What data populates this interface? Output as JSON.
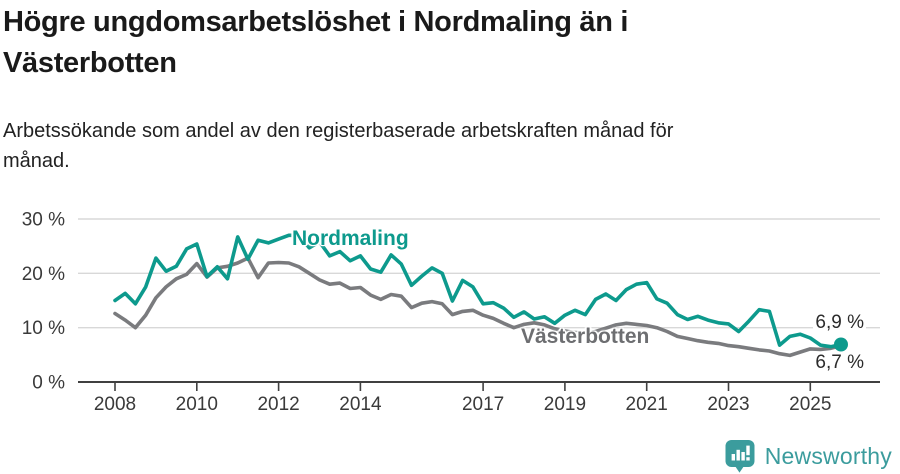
{
  "header": {
    "title_lines": [
      "Högre ungdomsarbetslöshet i Nordmaling än i",
      "Västerbotten"
    ],
    "subtitle_lines": [
      "Arbetssökande som andel av den registerbaserade arbetskraften månad för",
      "månad."
    ]
  },
  "chart_data": {
    "type": "line",
    "title": "Högre ungdomsarbetslöshet i Nordmaling än i Västerbotten",
    "subtitle": "Arbetssökande som andel av den registerbaserade arbetskraften månad för månad.",
    "unit": "%",
    "xlabel": "",
    "ylabel": "",
    "ylim": [
      0,
      30
    ],
    "grid": true,
    "legend_position": "inline-labels",
    "x_start_year": 2008,
    "x_step_years": 0.25,
    "x_end_year": 2025.75,
    "y_ticks": [
      {
        "value": 0,
        "label": "0 %"
      },
      {
        "value": 10,
        "label": "10 %"
      },
      {
        "value": 20,
        "label": "20 %"
      },
      {
        "value": 30,
        "label": "30 %"
      }
    ],
    "x_ticks": [
      {
        "year": 2008,
        "label": "2008"
      },
      {
        "year": 2010,
        "label": "2010"
      },
      {
        "year": 2012,
        "label": "2012"
      },
      {
        "year": 2014,
        "label": "2014"
      },
      {
        "year": 2017,
        "label": "2017"
      },
      {
        "year": 2019,
        "label": "2019"
      },
      {
        "year": 2021,
        "label": "2021"
      },
      {
        "year": 2023,
        "label": "2023"
      },
      {
        "year": 2025,
        "label": "2025"
      }
    ],
    "series": [
      {
        "name": "Nordmaling",
        "color": "#0D9A8D",
        "end_label": "6,9 %",
        "end_value": 6.9,
        "end_dot": true,
        "values": [
          15.0,
          16.3,
          14.4,
          17.5,
          22.8,
          20.4,
          21.3,
          24.5,
          25.4,
          19.4,
          21.2,
          19.0,
          26.7,
          22.6,
          26.1,
          25.6,
          26.3,
          27.0,
          27.0,
          24.7,
          25.8,
          23.2,
          24.0,
          22.3,
          23.2,
          20.8,
          20.2,
          23.4,
          21.7,
          17.8,
          19.5,
          21.0,
          20.0,
          14.9,
          18.7,
          17.5,
          14.4,
          14.6,
          13.6,
          11.9,
          12.9,
          11.6,
          12.0,
          10.8,
          12.3,
          13.2,
          12.4,
          15.2,
          16.2,
          15.0,
          17.0,
          18.0,
          18.3,
          15.3,
          14.5,
          12.4,
          11.5,
          12.1,
          11.4,
          10.9,
          10.7,
          9.3,
          11.2,
          13.3,
          13.0,
          6.8,
          8.4,
          8.8,
          8.1,
          6.8,
          6.5,
          6.9
        ]
      },
      {
        "name": "Västerbotten",
        "color": "#7A7B7E",
        "label_color": "#6d6e71",
        "end_label": "6,7 %",
        "end_value": 6.7,
        "end_dot": false,
        "values": [
          12.6,
          11.4,
          10.0,
          12.3,
          15.5,
          17.5,
          19.0,
          19.8,
          21.8,
          19.3,
          21.0,
          21.3,
          21.9,
          22.8,
          19.2,
          21.9,
          22.0,
          21.9,
          21.2,
          20.0,
          18.8,
          18.0,
          18.2,
          17.2,
          17.4,
          16.0,
          15.2,
          16.1,
          15.8,
          13.7,
          14.5,
          14.8,
          14.4,
          12.4,
          13.0,
          13.2,
          12.3,
          11.7,
          10.8,
          10.0,
          10.6,
          10.9,
          10.5,
          9.8,
          9.4,
          9.1,
          9.0,
          9.3,
          9.9,
          10.5,
          10.8,
          10.6,
          10.4,
          10.0,
          9.3,
          8.4,
          8.0,
          7.6,
          7.3,
          7.1,
          6.7,
          6.5,
          6.2,
          5.9,
          5.7,
          5.2,
          4.9,
          5.5,
          6.1,
          6.0,
          6.2,
          6.7
        ]
      }
    ]
  },
  "style": {
    "grid_color": "#d8d8d8",
    "axis_color": "#404040",
    "tick_text_color": "#3a3a3a",
    "title_color": "#1a1a1a",
    "subtitle_color": "#222222"
  },
  "footer": {
    "brand": "Newsworthy",
    "brand_color": "#3B9C9D"
  }
}
